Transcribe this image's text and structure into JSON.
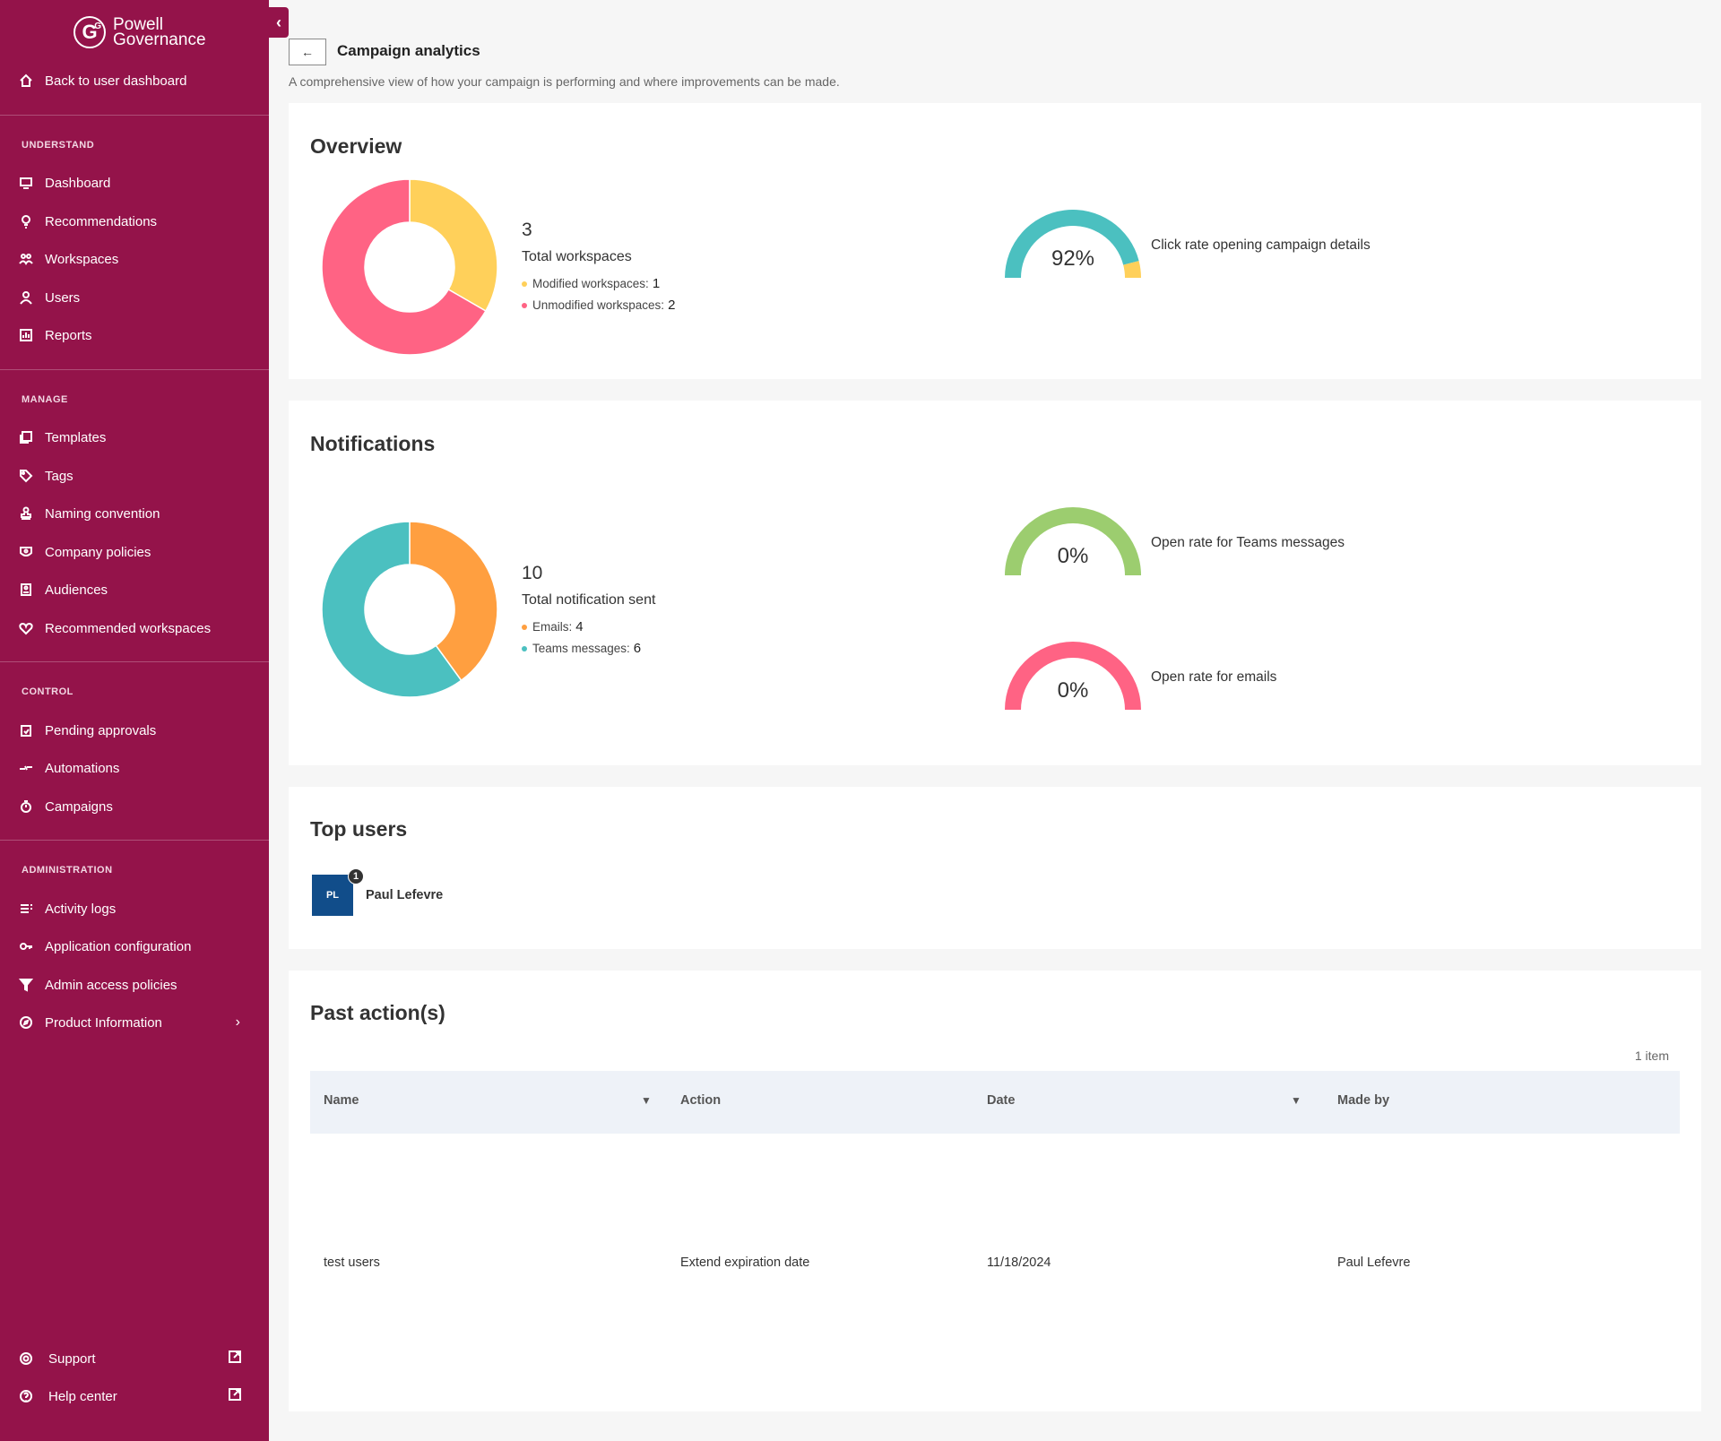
{
  "sidebar": {
    "logo": {
      "brand": "Powell",
      "product": "Governance",
      "mark": "G"
    },
    "back": "Back to user dashboard",
    "sections": {
      "understand": "UNDERSTAND",
      "manage": "MANAGE",
      "control": "CONTROL",
      "administration": "ADMINISTRATION"
    },
    "items": {
      "dashboard": "Dashboard",
      "recommendations": "Recommendations",
      "workspaces": "Workspaces",
      "users": "Users",
      "reports": "Reports",
      "templates": "Templates",
      "tags": "Tags",
      "naming": "Naming convention",
      "policies": "Company policies",
      "audiences": "Audiences",
      "recommended": "Recommended workspaces",
      "pending": "Pending approvals",
      "automations": "Automations",
      "campaigns": "Campaigns",
      "activity": "Activity logs",
      "appconfig": "Application configuration",
      "adminaccess": "Admin access policies",
      "product": "Product Information",
      "support": "Support",
      "help": "Help center"
    }
  },
  "header": {
    "title": "Campaign analytics",
    "description": "A comprehensive view of how your campaign is performing and where improvements can be made."
  },
  "overview": {
    "title": "Overview",
    "total": "3",
    "total_label": "Total workspaces",
    "legend": [
      {
        "label": "Modified workspaces:",
        "value": "1",
        "color": "#ffd05a"
      },
      {
        "label": "Unmodified workspaces:",
        "value": "2",
        "color": "#ff6384"
      }
    ],
    "gauge": {
      "value": "92%",
      "fraction": 0.92,
      "label": "Click rate opening campaign details",
      "color": "#4bc0c0",
      "rest_color": "#ffd05a"
    }
  },
  "notifications": {
    "title": "Notifications",
    "total": "10",
    "total_label": "Total notification sent",
    "legend": [
      {
        "label": "Emails:",
        "value": "4",
        "color": "#ff9f40"
      },
      {
        "label": "Teams messages:",
        "value": "6",
        "color": "#4bc0c0"
      }
    ],
    "gauges": [
      {
        "value": "0%",
        "fraction": 0,
        "label": "Open rate for Teams messages",
        "color": "#9ccd6f"
      },
      {
        "value": "0%",
        "fraction": 0,
        "label": "Open rate for emails",
        "color": "#ff6384"
      }
    ]
  },
  "top_users": {
    "title": "Top users",
    "users": [
      {
        "initials": "PL",
        "name": "Paul Lefevre",
        "rank": "1",
        "color": "#114d8a"
      }
    ]
  },
  "past_actions": {
    "title": "Past action(s)",
    "count": "1 item",
    "columns": {
      "name": "Name",
      "action": "Action",
      "date": "Date",
      "made_by": "Made by"
    },
    "rows": [
      {
        "name": "test users",
        "action": "Extend expiration date",
        "date": "11/18/2024",
        "made_by": "Paul Lefevre"
      }
    ]
  },
  "chart_data": [
    {
      "type": "pie",
      "categories": [
        "Modified workspaces",
        "Unmodified workspaces"
      ],
      "values": [
        1,
        2
      ]
    },
    {
      "type": "pie",
      "categories": [
        "Emails",
        "Teams messages"
      ],
      "values": [
        4,
        6
      ]
    }
  ]
}
